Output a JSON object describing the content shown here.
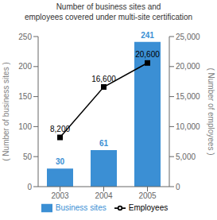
{
  "chart_data": {
    "type": "bar",
    "title": "Number of business sites and",
    "subtitle": "employees covered under multi-site certification",
    "categories": [
      "2003",
      "2004",
      "2005"
    ],
    "series": [
      {
        "name": "Business sites",
        "type": "bar",
        "color": "#3b8fd4",
        "values": [
          30,
          61,
          241
        ],
        "data_labels": true
      },
      {
        "name": "Employees",
        "type": "line",
        "axis": "y2",
        "color": "#000000",
        "marker": "square",
        "values": [
          8200,
          16600,
          20600
        ],
        "value_labels": [
          "8,200",
          "16,600",
          "20,600"
        ],
        "data_labels": true
      }
    ],
    "ylabel": "( Number of business sites )",
    "y2label": "( Number of employees )",
    "ylim": [
      0,
      250
    ],
    "yticks": [
      0,
      50,
      100,
      150,
      200,
      250
    ],
    "y2lim": [
      0,
      25000
    ],
    "y2ticks": [
      0,
      {
        "value": 5000,
        "label": "5,000"
      },
      {
        "value": 10000,
        "label": "10,000"
      },
      {
        "value": 15000,
        "label": "15,000"
      },
      {
        "value": 20000,
        "label": "20,000"
      },
      {
        "value": 25000,
        "label": "25,000"
      }
    ],
    "grid": false,
    "legend": "bottom"
  }
}
